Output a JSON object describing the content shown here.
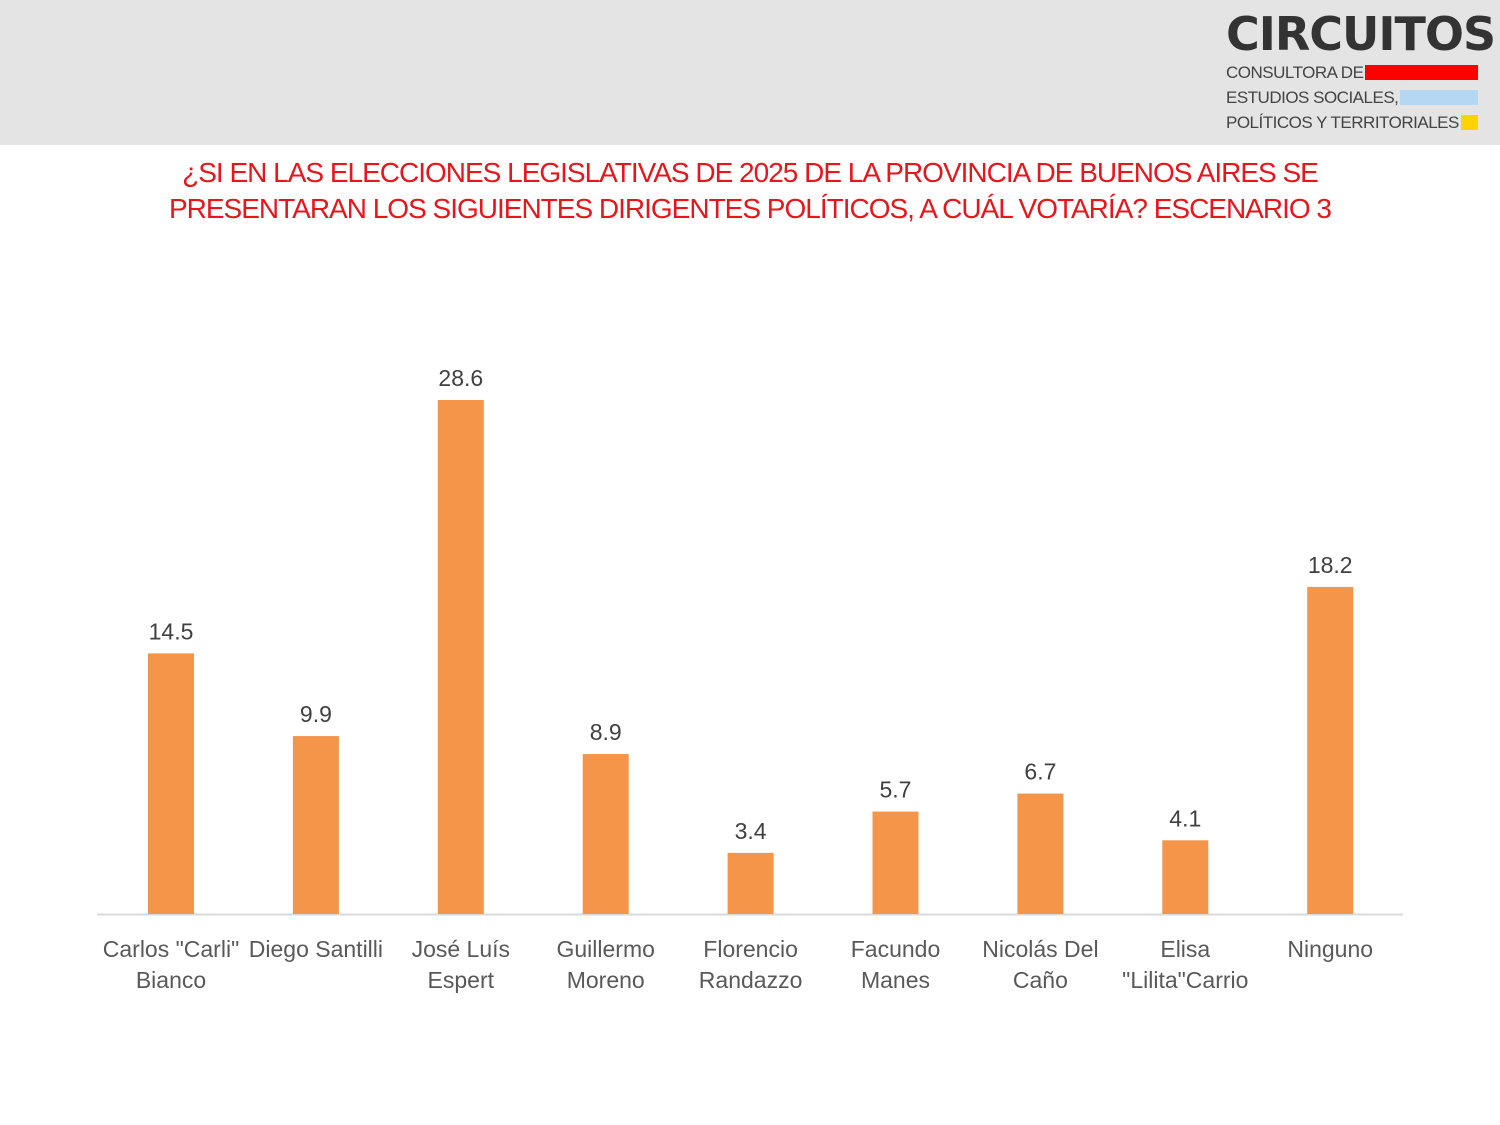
{
  "logo": {
    "name": "CIRCUITOS",
    "lines": [
      "CONSULTORA DE",
      "ESTUDIOS SOCIALES,",
      "POLÍTICOS Y TERRITORIALES"
    ],
    "colors": [
      "#ff0000",
      "#b4d8f3",
      "#ffd200"
    ]
  },
  "chart_data": {
    "type": "bar",
    "title_lines": [
      "¿SI EN LAS ELECCIONES LEGISLATIVAS DE 2025 DE LA PROVINCIA DE BUENOS AIRES SE",
      "PRESENTARAN LOS SIGUIENTES DIRIGENTES POLÍTICOS, A CUÁL VOTARÍA? ESCENARIO 3"
    ],
    "categories": [
      [
        "Carlos \"Carli\"",
        "Bianco"
      ],
      [
        "Diego Santilli"
      ],
      [
        "José Luís",
        "Espert"
      ],
      [
        "Guillermo",
        "Moreno"
      ],
      [
        "Florencio",
        "Randazzo"
      ],
      [
        "Facundo",
        "Manes"
      ],
      [
        "Nicolás Del",
        "Caño"
      ],
      [
        "Elisa",
        "\"Lilita\"Carrio"
      ],
      [
        "Ninguno"
      ]
    ],
    "values": [
      14.5,
      9.9,
      28.6,
      8.9,
      3.4,
      5.7,
      6.7,
      4.1,
      18.2
    ],
    "value_labels": [
      "14.5",
      "9.9",
      "28.6",
      "8.9",
      "3.4",
      "5.7",
      "6.7",
      "4.1",
      "18.2"
    ],
    "ylim": [
      0,
      28.6
    ],
    "grid": false,
    "bar_color": "#f5954a",
    "title_color": "#e8161b"
  }
}
